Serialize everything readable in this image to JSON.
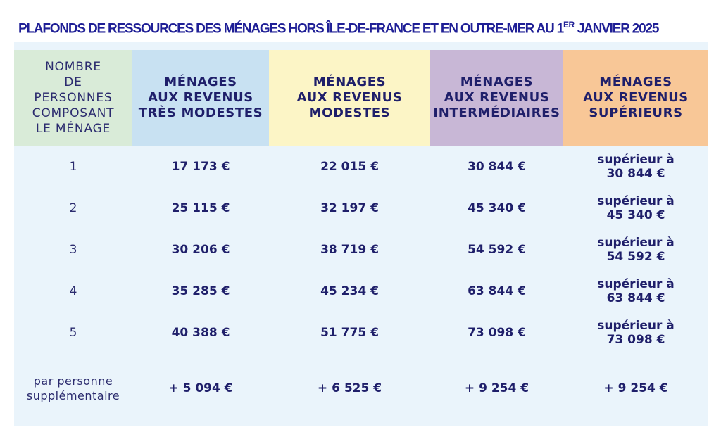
{
  "title": {
    "main": "PLAFONDS DE RESSOURCES DES MÉNAGES HORS ÎLE-DE-FRANCE ET EN OUTRE-MER AU 1",
    "sup": "ER",
    "end": " JANVIER 2025"
  },
  "table": {
    "headers": [
      [
        "NOMBRE",
        "DE",
        "PERSONNES",
        "COMPOSANT",
        "LE MÉNAGE"
      ],
      [
        "MÉNAGES",
        "AUX REVENUS",
        "TRÈS MODESTES"
      ],
      [
        "MÉNAGES",
        "AUX REVENUS",
        "MODESTES"
      ],
      [
        "MÉNAGES",
        "AUX REVENUS",
        "INTERMÉDIAIRES"
      ],
      [
        "MÉNAGES",
        "AUX REVENUS",
        "SUPÉRIEURS"
      ]
    ],
    "rows": [
      {
        "n": "1",
        "v": [
          "17 173 €",
          "22 015 €",
          "30 844 €"
        ],
        "sup": [
          "supérieur à",
          "30 844 €"
        ]
      },
      {
        "n": "2",
        "v": [
          "25 115 €",
          "32 197 €",
          "45 340 €"
        ],
        "sup": [
          "supérieur à",
          "45 340 €"
        ]
      },
      {
        "n": "3",
        "v": [
          "30 206 €",
          "38 719 €",
          "54 592 €"
        ],
        "sup": [
          "supérieur à",
          "54 592 €"
        ]
      },
      {
        "n": "4",
        "v": [
          "35 285 €",
          "45 234 €",
          "63 844 €"
        ],
        "sup": [
          "supérieur à",
          "63 844 €"
        ]
      },
      {
        "n": "5",
        "v": [
          "40 388 €",
          "51 775 €",
          "73 098 €"
        ],
        "sup": [
          "supérieur à",
          "73 098 €"
        ]
      }
    ],
    "extra": {
      "label": [
        "par personne",
        "supplémentaire"
      ],
      "v": [
        "+ 5 094 €",
        "+ 6 525 €",
        "+ 9 254 €",
        "+ 9 254 €"
      ]
    }
  },
  "colors": {
    "title": "#1f1f96",
    "header_persons": "#d9ebd8",
    "header_tres_modestes": "#c8e1f2",
    "header_modestes": "#fcf5c6",
    "header_intermediaires": "#c8b7d6",
    "header_superieurs": "#f8c797",
    "body_bg": "#eaf4fb"
  }
}
